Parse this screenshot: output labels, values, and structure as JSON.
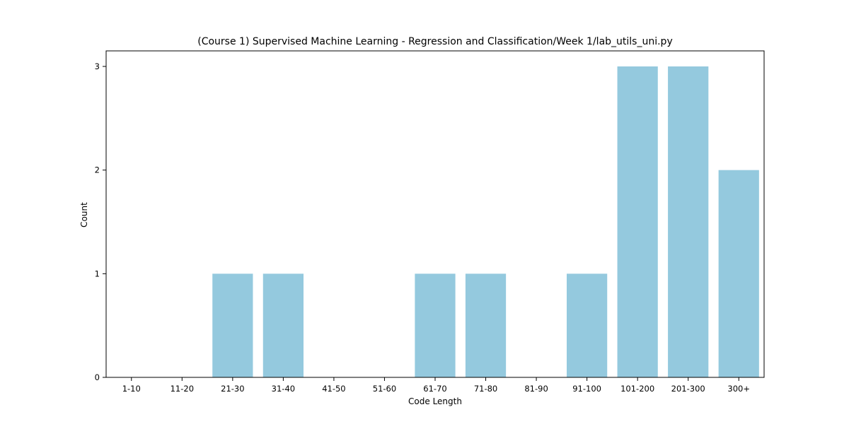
{
  "chart_data": {
    "type": "bar",
    "title": "(Course 1) Supervised Machine Learning - Regression and Classification/Week 1/lab_utils_uni.py",
    "xlabel": "Code Length",
    "ylabel": "Count",
    "categories": [
      "1-10",
      "11-20",
      "21-30",
      "31-40",
      "41-50",
      "51-60",
      "61-70",
      "71-80",
      "81-90",
      "91-100",
      "101-200",
      "201-300",
      "300+"
    ],
    "values": [
      0,
      0,
      1,
      1,
      0,
      0,
      1,
      1,
      0,
      1,
      3,
      3,
      2
    ],
    "ylim": [
      0,
      3.15
    ],
    "yticks": [
      0,
      1,
      2,
      3
    ],
    "grid": false,
    "bar_color": "#94c9de"
  }
}
